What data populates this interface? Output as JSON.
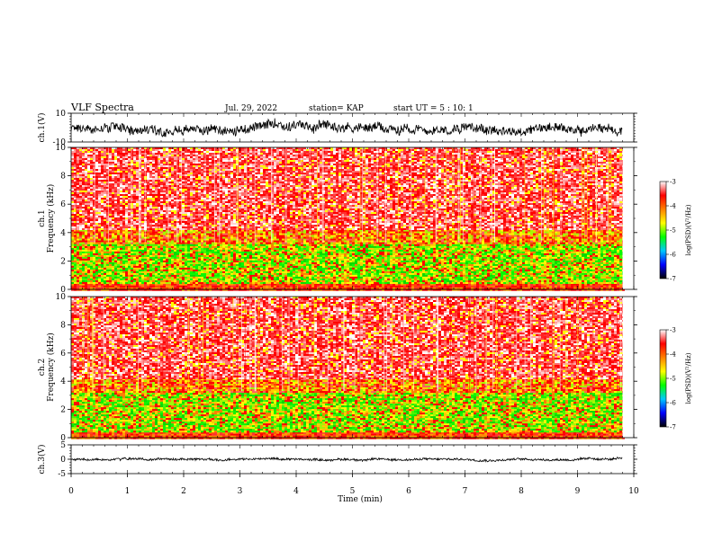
{
  "header": {
    "title": "VLF Spectra",
    "date": "Jul. 29, 2022",
    "station": "station= KAP",
    "start": "start UT =  5 : 10: 1"
  },
  "chart_data": [
    {
      "type": "line",
      "panel": "ch1-waveform",
      "ylabel": "ch.1(V)",
      "ylim": [
        -10,
        10
      ],
      "yticks": [
        "10",
        "-10"
      ],
      "xlim": [
        0,
        10
      ],
      "line_color": "#000000",
      "x_range_data": [
        0,
        9.8
      ],
      "mean": 0,
      "amplitude": 6
    },
    {
      "type": "heatmap",
      "panel": "ch1-spectrogram",
      "ylabel": "ch.1 Frequency (kHz)",
      "ylabel_top": "ch.1",
      "ylabel_bottom": "Frequency (kHz)",
      "ylim": [
        0,
        10
      ],
      "yticks": [
        "0",
        "2",
        "4",
        "6",
        "8",
        "10"
      ],
      "xlim": [
        0,
        10
      ],
      "x_range_data": [
        0,
        9.8
      ],
      "bands": [
        {
          "from": 0.0,
          "to": 0.4,
          "level": "orange-red"
        },
        {
          "from": 0.4,
          "to": 3.3,
          "level": "green-yellow"
        },
        {
          "from": 3.3,
          "to": 4.2,
          "level": "red-yellow"
        },
        {
          "from": 4.2,
          "to": 10.0,
          "level": "red"
        }
      ]
    },
    {
      "type": "heatmap",
      "panel": "ch2-spectrogram",
      "ylabel": "ch.2 Frequency (kHz)",
      "ylabel_top": "ch.2",
      "ylabel_bottom": "Frequency (kHz)",
      "ylim": [
        0,
        10
      ],
      "yticks": [
        "0",
        "2",
        "4",
        "6",
        "8",
        "10"
      ],
      "xlim": [
        0,
        10
      ],
      "x_range_data": [
        0,
        9.8
      ],
      "bands": [
        {
          "from": 0.0,
          "to": 0.4,
          "level": "orange-red"
        },
        {
          "from": 0.4,
          "to": 3.3,
          "level": "green-yellow"
        },
        {
          "from": 3.3,
          "to": 4.2,
          "level": "red-yellow"
        },
        {
          "from": 4.2,
          "to": 10.0,
          "level": "red"
        }
      ]
    },
    {
      "type": "line",
      "panel": "ch3-waveform",
      "ylabel": "ch.3(V)",
      "ylim": [
        -5,
        5
      ],
      "yticks": [
        "5",
        "0",
        "-5"
      ],
      "xlim": [
        0,
        10
      ],
      "xticks": [
        "0",
        "1",
        "2",
        "3",
        "4",
        "5",
        "6",
        "7",
        "8",
        "9",
        "10"
      ],
      "xlabel": "Time (min)",
      "line_color": "#000000",
      "x_range_data": [
        0,
        9.8
      ],
      "mean": 0,
      "amplitude": 0.7
    }
  ],
  "colorbar": {
    "label": "log(PSD)(V²/Hz)",
    "range": [
      -7,
      -3
    ],
    "ticks": [
      "-3",
      "-4",
      "-5",
      "-6",
      "-7"
    ],
    "colors": [
      "#000000",
      "#0000ff",
      "#00c8ff",
      "#00ff00",
      "#ffff00",
      "#ff8000",
      "#ff0000",
      "#ffffff"
    ]
  }
}
